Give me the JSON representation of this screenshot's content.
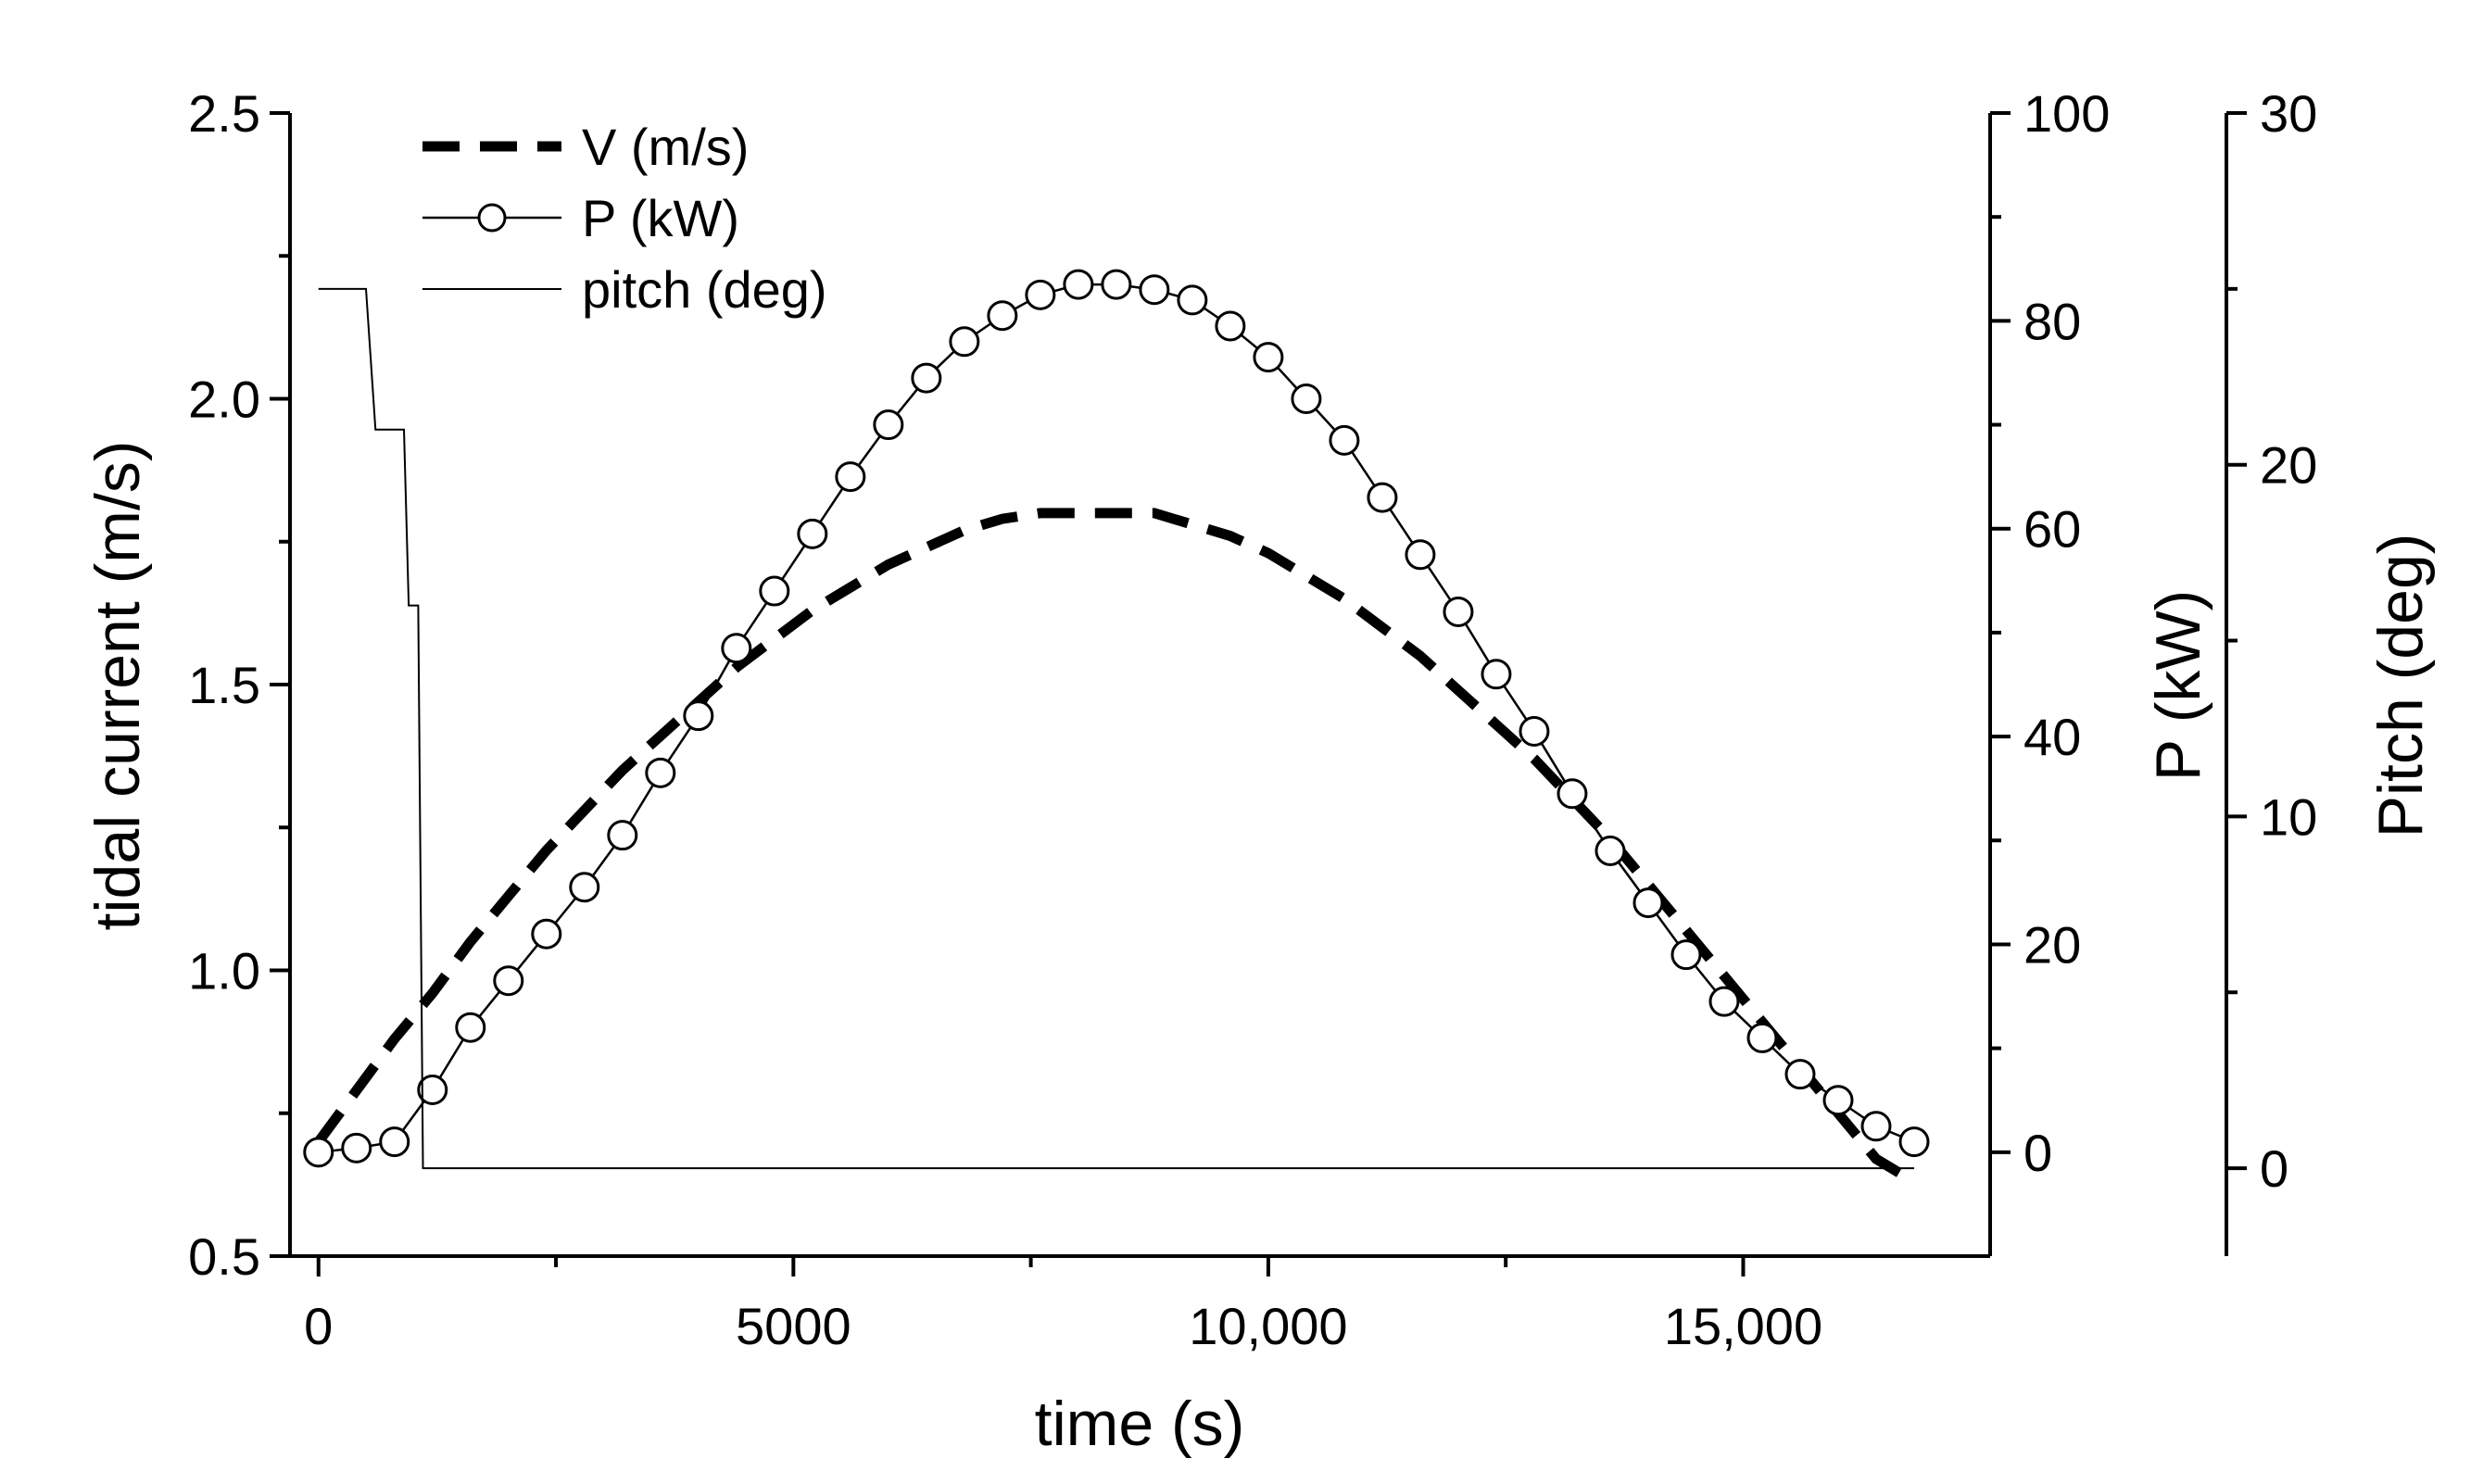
{
  "chart_data": {
    "type": "line",
    "title": "",
    "xlabel": "time (s)",
    "xlim": [
      -300,
      17600
    ],
    "xticks": [
      0,
      5000,
      10000,
      15000
    ],
    "xtick_labels": [
      "0",
      "5000",
      "10,000",
      "15,000"
    ],
    "axes": {
      "left": {
        "label": "tidal current (m/s)",
        "lim": [
          0.5,
          2.5
        ],
        "ticks": [
          0.5,
          1.0,
          1.5,
          2.0,
          2.5
        ],
        "tick_labels": [
          "0.5",
          "1.0",
          "1.5",
          "2.0",
          "2.5"
        ]
      },
      "right1": {
        "label": "P (kW)",
        "lim": [
          -10,
          100
        ],
        "ticks": [
          0,
          20,
          40,
          60,
          80,
          100
        ],
        "tick_labels": [
          "0",
          "20",
          "40",
          "60",
          "80",
          "100"
        ]
      },
      "right2": {
        "label": "Pitch (deg)",
        "lim": [
          -2.5,
          30
        ],
        "ticks": [
          0,
          10,
          20,
          30
        ],
        "tick_labels": [
          "0",
          "10",
          "20",
          "30"
        ]
      }
    },
    "legend_position": "top-left",
    "series": [
      {
        "name": "V (m/s)",
        "axis": "left",
        "style": "dashed",
        "x": [
          0,
          400,
          800,
          1200,
          1600,
          2000,
          2400,
          2800,
          3200,
          3600,
          4000,
          4400,
          4800,
          5200,
          5600,
          6000,
          6400,
          6800,
          7200,
          7600,
          8000,
          8400,
          8800,
          9200,
          9600,
          10000,
          10400,
          10800,
          11200,
          11600,
          12000,
          12400,
          12800,
          13200,
          13600,
          14000,
          14400,
          14800,
          15200,
          15600,
          16000,
          16400,
          16800
        ],
        "y": [
          0.7,
          0.79,
          0.88,
          0.96,
          1.05,
          1.13,
          1.21,
          1.28,
          1.35,
          1.41,
          1.47,
          1.53,
          1.58,
          1.63,
          1.67,
          1.71,
          1.74,
          1.77,
          1.79,
          1.8,
          1.8,
          1.8,
          1.8,
          1.78,
          1.76,
          1.73,
          1.69,
          1.65,
          1.6,
          1.55,
          1.49,
          1.43,
          1.37,
          1.3,
          1.23,
          1.15,
          1.07,
          0.99,
          0.91,
          0.83,
          0.75,
          0.67,
          0.63
        ]
      },
      {
        "name": "P (kW)",
        "axis": "right1",
        "style": "line-circles",
        "x": [
          0,
          400,
          800,
          1200,
          1600,
          2000,
          2400,
          2800,
          3200,
          3600,
          4000,
          4400,
          4800,
          5200,
          5600,
          6000,
          6400,
          6800,
          7200,
          7600,
          8000,
          8400,
          8800,
          9200,
          9600,
          10000,
          10400,
          10800,
          11200,
          11600,
          12000,
          12400,
          12800,
          13200,
          13600,
          14000,
          14400,
          14800,
          15200,
          15600,
          16000,
          16400,
          16800
        ],
        "y": [
          0,
          0.4,
          1,
          6,
          12,
          16.5,
          21,
          25.5,
          30.5,
          36.5,
          42,
          48.5,
          54,
          59.5,
          65,
          70,
          74.5,
          78,
          80.5,
          82.5,
          83.5,
          83.5,
          83,
          82,
          79.5,
          76.5,
          72.5,
          68.5,
          63,
          57.5,
          52,
          46,
          40.5,
          34.5,
          29,
          24,
          19,
          14.5,
          11,
          7.5,
          5,
          2.5,
          1
        ]
      },
      {
        "name": "pitch (deg)",
        "axis": "right2",
        "style": "thin",
        "x": [
          0,
          500,
          600,
          900,
          950,
          1050,
          1100,
          1200,
          1250,
          16800
        ],
        "y": [
          25,
          25,
          21,
          21,
          16,
          16,
          0,
          0,
          0,
          0
        ]
      }
    ]
  }
}
